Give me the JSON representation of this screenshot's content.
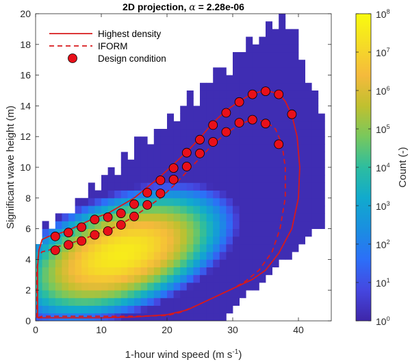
{
  "chart_data": {
    "type": "heatmap",
    "title_prefix": "2D projection, ",
    "title_symbol": "α",
    "title_suffix": " = 2.28e-06",
    "xlabel_main": "1-hour wind speed (m s",
    "xlabel_sup": "-1",
    "xlabel_end": ")",
    "ylabel": "Significant wave height (m)",
    "xlim": [
      0,
      45
    ],
    "ylim": [
      0,
      20
    ],
    "xticks": [
      0,
      10,
      20,
      30,
      40
    ],
    "yticks": [
      0,
      2,
      4,
      6,
      8,
      10,
      12,
      14,
      16,
      18,
      20
    ],
    "colorbar": {
      "label": "Count (-)",
      "scale": "log",
      "range": [
        1,
        100000000
      ],
      "ticks": [
        {
          "base": "10",
          "exp": "0"
        },
        {
          "base": "10",
          "exp": "1"
        },
        {
          "base": "10",
          "exp": "2"
        },
        {
          "base": "10",
          "exp": "3"
        },
        {
          "base": "10",
          "exp": "4"
        },
        {
          "base": "10",
          "exp": "5"
        },
        {
          "base": "10",
          "exp": "6"
        },
        {
          "base": "10",
          "exp": "7"
        },
        {
          "base": "10",
          "exp": "8"
        }
      ]
    },
    "legend": {
      "placement": "top-left",
      "entries": [
        "Highest density",
        "IFORM",
        "Design condition"
      ]
    },
    "colors": {
      "contour": "#d7191c",
      "marker_fill": "#e8101a",
      "marker_edge": "#000000"
    },
    "series": [
      {
        "name": "Highest density",
        "style": "solid",
        "x": [
          0.3,
          0.3,
          0.5,
          1.0,
          2.0,
          3.0,
          5.0,
          7.0,
          9.0,
          11.0,
          13.0,
          15.0,
          17.0,
          19.0,
          21.0,
          23.0,
          25.0,
          27.0,
          29.0,
          31.0,
          33.0,
          35.0,
          37.0,
          38.0,
          39.0,
          39.8,
          40.2,
          40.0,
          39.0,
          37.0,
          35.0,
          33.0,
          31.0,
          29.0,
          27.0,
          25.0,
          23.0,
          20.0,
          15.0,
          10.0,
          5.0,
          1.0,
          0.3
        ],
        "y": [
          0.2,
          3.5,
          4.6,
          5.3,
          5.5,
          5.6,
          5.9,
          6.3,
          6.7,
          7.0,
          7.5,
          8.0,
          8.7,
          9.4,
          10.2,
          11.0,
          11.9,
          12.9,
          13.7,
          14.3,
          14.8,
          15.0,
          14.8,
          14.3,
          13.4,
          12.0,
          10.0,
          8.0,
          6.0,
          4.4,
          3.3,
          2.7,
          2.3,
          1.9,
          1.5,
          1.1,
          0.7,
          0.4,
          0.25,
          0.2,
          0.2,
          0.2,
          0.2
        ]
      },
      {
        "name": "IFORM",
        "style": "dashed",
        "x": [
          0.2,
          0.2,
          0.4,
          1.0,
          2.0,
          3.0,
          5.0,
          7.0,
          9.0,
          11.0,
          13.0,
          15.0,
          17.0,
          19.0,
          21.0,
          23.0,
          25.0,
          27.0,
          29.0,
          31.0,
          33.0,
          35.0,
          36.5,
          37.5,
          38.0,
          38.0,
          37.2,
          36.0,
          34.0,
          32.0,
          30.0,
          28.0,
          26.0,
          24.0,
          22.0,
          20.0,
          15.0,
          10.0,
          5.0,
          1.0,
          0.2
        ],
        "y": [
          0.2,
          3.3,
          4.2,
          4.5,
          4.6,
          4.8,
          5.0,
          5.3,
          5.6,
          5.9,
          6.3,
          6.8,
          7.4,
          8.0,
          8.8,
          9.7,
          10.6,
          11.5,
          12.2,
          12.8,
          13.1,
          13.0,
          12.5,
          11.5,
          10.0,
          8.0,
          6.0,
          4.5,
          3.3,
          2.6,
          2.1,
          1.7,
          1.3,
          0.9,
          0.55,
          0.35,
          0.3,
          0.3,
          0.3,
          0.3,
          0.2
        ]
      }
    ],
    "design_conditions": {
      "name": "Design condition",
      "x": [
        3,
        5,
        7,
        9,
        11,
        13,
        15,
        17,
        19,
        21,
        23,
        25,
        27,
        29,
        31,
        33,
        35,
        37,
        39,
        3,
        5,
        7,
        9,
        11,
        13,
        15,
        17,
        19,
        21,
        23,
        25,
        27,
        29,
        31,
        33,
        35,
        37
      ],
      "y": [
        5.5,
        5.75,
        6.1,
        6.6,
        6.75,
        7.0,
        7.6,
        8.35,
        9.15,
        9.95,
        10.95,
        11.8,
        12.75,
        13.55,
        14.25,
        14.75,
        14.95,
        14.75,
        13.45,
        4.6,
        4.95,
        5.2,
        5.6,
        5.85,
        6.25,
        6.8,
        7.55,
        8.3,
        9.2,
        10.05,
        10.9,
        11.65,
        12.3,
        12.9,
        13.1,
        12.85,
        11.5
      ]
    }
  }
}
